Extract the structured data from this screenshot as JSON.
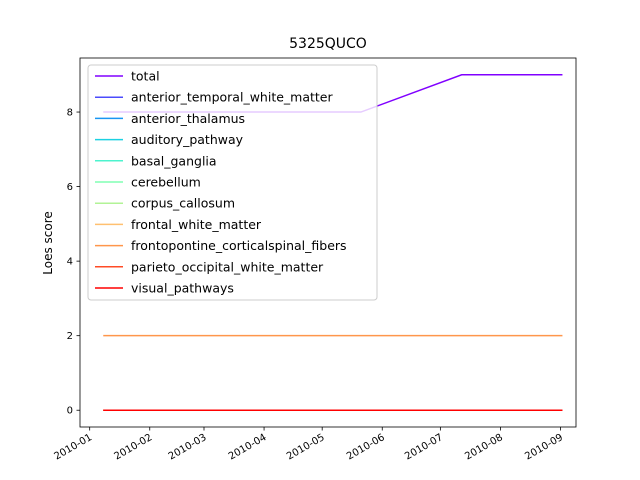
{
  "chart_data": {
    "type": "line",
    "title": "5325QUCO",
    "xlabel": "",
    "ylabel": "Loes score",
    "x_dates": [
      "2010-01-08",
      "2010-05-21",
      "2010-07-12",
      "2010-09-02"
    ],
    "xlim": [
      "2009-12-27",
      "2010-09-09"
    ],
    "ylim": [
      -0.45,
      9.45
    ],
    "x_ticks": [
      "2010-01-01",
      "2010-02-01",
      "2010-03-01",
      "2010-04-01",
      "2010-05-01",
      "2010-06-01",
      "2010-07-01",
      "2010-08-01",
      "2010-09-01"
    ],
    "x_tick_labels": [
      "2010-01",
      "2010-02",
      "2010-03",
      "2010-04",
      "2010-05",
      "2010-06",
      "2010-07",
      "2010-08",
      "2010-09"
    ],
    "y_ticks": [
      0,
      2,
      4,
      6,
      8
    ],
    "y_tick_labels": [
      "0",
      "2",
      "4",
      "6",
      "8"
    ],
    "legend_position": "upper-left",
    "series": [
      {
        "name": "total",
        "color": "#8000ff",
        "values": [
          8,
          8,
          9,
          9
        ]
      },
      {
        "name": "anterior_temporal_white_matter",
        "color": "#4b4bfc",
        "values": [
          0,
          0,
          0,
          0
        ]
      },
      {
        "name": "anterior_thalamus",
        "color": "#1996f3",
        "values": [
          0,
          0,
          0,
          0
        ]
      },
      {
        "name": "auditory_pathway",
        "color": "#1cd1e2",
        "values": [
          0,
          0,
          0,
          0
        ]
      },
      {
        "name": "basal_ganglia",
        "color": "#4df3ce",
        "values": [
          0,
          0,
          0,
          0
        ]
      },
      {
        "name": "cerebellum",
        "color": "#80ffb4",
        "values": [
          0,
          0,
          0,
          0
        ]
      },
      {
        "name": "corpus_callosum",
        "color": "#b2f396",
        "values": [
          0,
          0,
          0,
          0
        ]
      },
      {
        "name": "frontal_white_matter",
        "color": "#ffc070",
        "values": [
          0,
          0,
          0,
          0
        ]
      },
      {
        "name": "frontopontine_corticalspinal_fibers",
        "color": "#ff964b",
        "values": [
          2,
          2,
          2,
          2
        ]
      },
      {
        "name": "parieto_occipital_white_matter",
        "color": "#ff4b26",
        "values": [
          0,
          0,
          0,
          0
        ]
      },
      {
        "name": "visual_pathways",
        "color": "#ff0000",
        "values": [
          0,
          0,
          0,
          0
        ]
      }
    ]
  }
}
